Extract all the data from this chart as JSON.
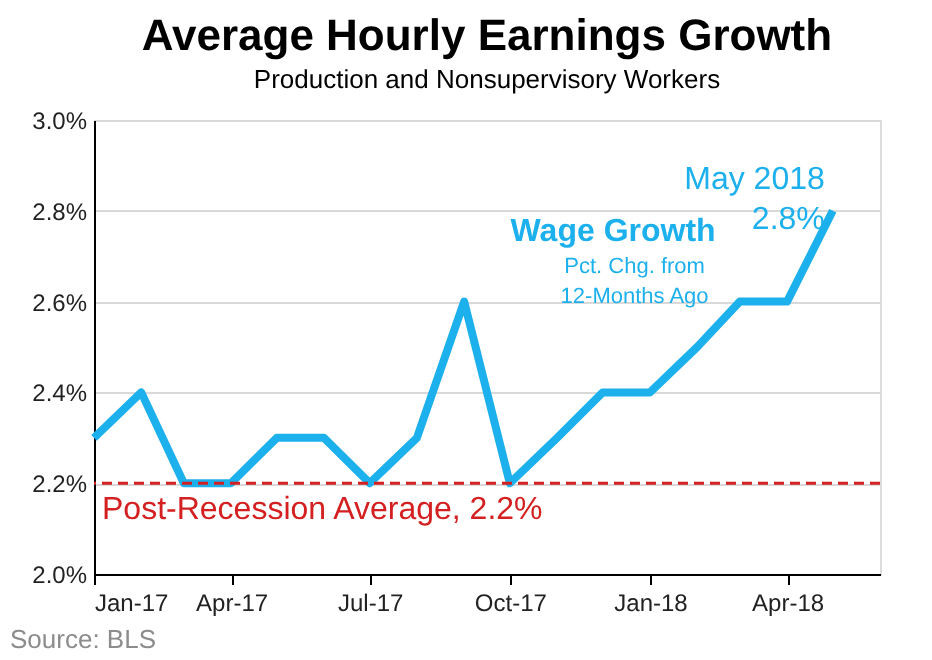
{
  "chart_data": {
    "type": "line",
    "title": "Average Hourly Earnings Growth",
    "subtitle": "Production and Nonsupervisory Workers",
    "x": [
      "2017-01",
      "2017-02",
      "2017-03",
      "2017-04",
      "2017-05",
      "2017-06",
      "2017-07",
      "2017-08",
      "2017-09",
      "2017-10",
      "2017-11",
      "2017-12",
      "2018-01",
      "2018-02",
      "2018-03",
      "2018-04",
      "2018-05"
    ],
    "series": [
      {
        "name": "Wage Growth",
        "color": "#1cb0ec",
        "values": [
          2.3,
          2.4,
          2.2,
          2.2,
          2.3,
          2.3,
          2.2,
          2.3,
          2.6,
          2.2,
          2.3,
          2.4,
          2.4,
          2.5,
          2.6,
          2.6,
          2.8
        ]
      }
    ],
    "xlim": [
      "2017-01",
      "2018-06"
    ],
    "xticks": [
      {
        "value": "2017-01",
        "label": "Jan-17"
      },
      {
        "value": "2017-04",
        "label": "Apr-17"
      },
      {
        "value": "2017-07",
        "label": "Jul-17"
      },
      {
        "value": "2017-10",
        "label": "Oct-17"
      },
      {
        "value": "2018-01",
        "label": "Jan-18"
      },
      {
        "value": "2018-04",
        "label": "Apr-18"
      }
    ],
    "ylim": [
      2.0,
      3.0
    ],
    "yticks": [
      {
        "value": 2.0,
        "label": "2.0%"
      },
      {
        "value": 2.2,
        "label": "2.2%"
      },
      {
        "value": 2.4,
        "label": "2.4%"
      },
      {
        "value": 2.6,
        "label": "2.6%"
      },
      {
        "value": 2.8,
        "label": "2.8%"
      },
      {
        "value": 3.0,
        "label": "3.0%"
      }
    ],
    "grid": "y",
    "ref_lines": [
      {
        "axis": "y",
        "value": 2.2,
        "label": "Post-Recession Average, 2.2%",
        "color": "#d42020",
        "line_style": "dashed"
      }
    ],
    "annotations": [
      "Pct. Chg. from 12-Months Ago",
      {
        "text": "May 2018 2.8%",
        "x": "2018-05",
        "y": 2.8
      },
      "Source: BLS"
    ]
  }
}
